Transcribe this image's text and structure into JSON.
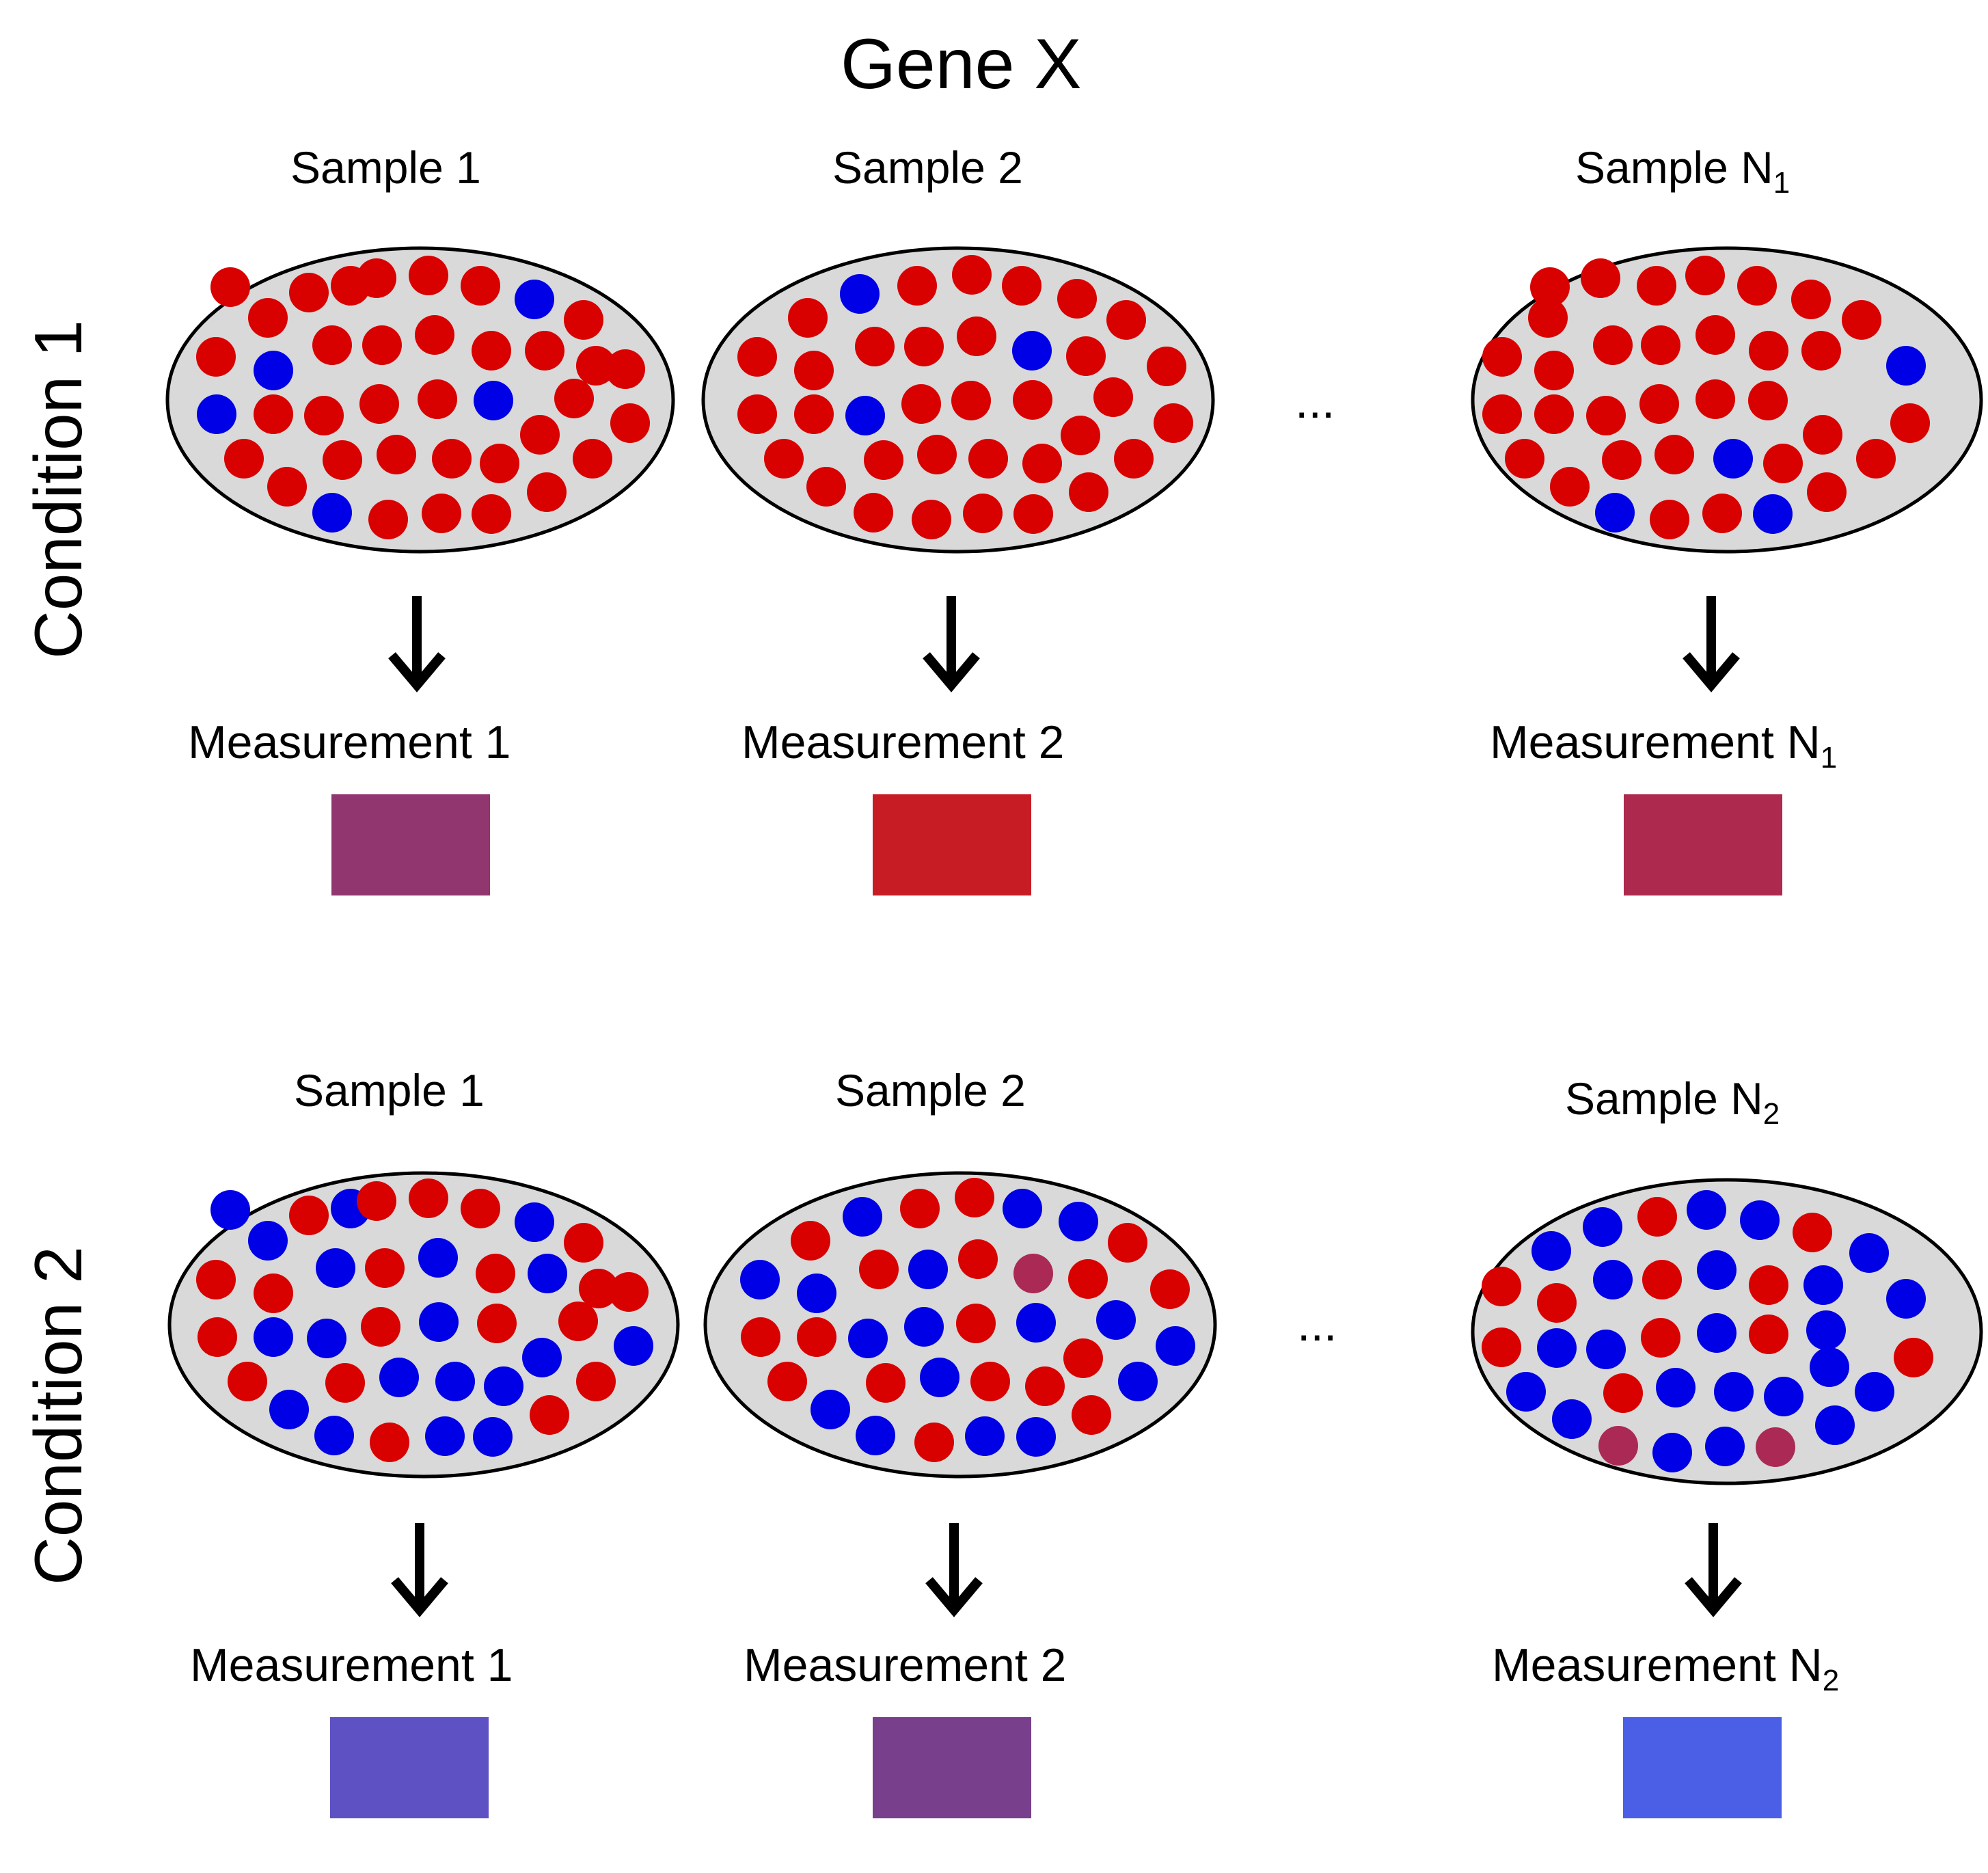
{
  "title": "Gene X",
  "ellipsis": "...",
  "conditions": [
    {
      "label": "Condition 1",
      "samples": [
        {
          "label": "Sample 1",
          "measurement": "Measurement 1",
          "color": "#923670"
        },
        {
          "label": "Sample 2",
          "measurement": "Measurement 2",
          "color": "#c81c24"
        },
        {
          "label": "Sample N",
          "sub": "1",
          "measurement": "Measurement N",
          "measurement_sub": "1",
          "color": "#ad294d"
        }
      ]
    },
    {
      "label": "Condition 2",
      "samples": [
        {
          "label": "Sample 1",
          "measurement": "Measurement 1",
          "color": "#5e51c4"
        },
        {
          "label": "Sample 2",
          "measurement": "Measurement 2",
          "color": "#773f8c"
        },
        {
          "label": "Sample N",
          "sub": "2",
          "measurement": "Measurement N",
          "measurement_sub": "2",
          "color": "#4a5ee6"
        }
      ]
    }
  ],
  "colors": {
    "cell_red": "#d90000",
    "cell_blue": "#0000e6",
    "cell_mixed": "#aa2a55",
    "ellipse_fill": "#d9d9d9",
    "ellipse_stroke": "#000000"
  }
}
